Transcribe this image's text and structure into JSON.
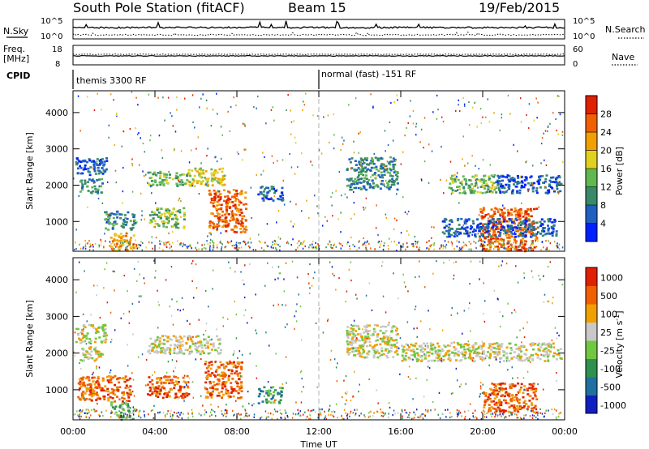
{
  "header": {
    "station": "South Pole Station (fitACF)",
    "beam": "Beam 15",
    "date": "19/Feb/2015"
  },
  "strip_panels": {
    "nsky_label": "N.Sky",
    "nsky_ticks": [
      "10^5",
      "10^0"
    ],
    "nsearch_label": "N.Search",
    "nsearch_ticks": [
      "10^5",
      "10^0"
    ],
    "freq_label_line1": "Freq.",
    "freq_label_line2": "[MHz]",
    "freq_ticks": [
      "18",
      "8"
    ],
    "nave_label": "Nave",
    "nave_ticks": [
      "60",
      "0"
    ],
    "cpid_label": "CPID",
    "cpid_modes": [
      {
        "name": "themis 3300 RF",
        "start_ut": 0
      },
      {
        "name": "normal (fast) -151 RF",
        "start_ut": 12
      }
    ]
  },
  "chart_data": [
    {
      "type": "heatmap",
      "title": "",
      "xlabel": "",
      "ylabel": "Slant Range [km]",
      "xlim": [
        0,
        24
      ],
      "ylim": [
        180,
        4600
      ],
      "yticks": [
        "1000",
        "2000",
        "3000",
        "4000"
      ],
      "colorbar_label": "Power [dB]",
      "colorbar_ticks": [
        "28",
        "24",
        "20",
        "16",
        "12",
        "8",
        "4"
      ],
      "colors": [
        "#0020ff",
        "#2060c0",
        "#3a8a6a",
        "#60b850",
        "#e0d020",
        "#f0a000",
        "#f06000",
        "#e02000"
      ],
      "regions": [
        {
          "x": [
            0.1,
            1.6
          ],
          "y": [
            2300,
            2800
          ],
          "level": 1
        },
        {
          "x": [
            0.3,
            1.4
          ],
          "y": [
            1800,
            2200
          ],
          "level": 2
        },
        {
          "x": [
            1.5,
            3.0
          ],
          "y": [
            800,
            1300
          ],
          "level": 2
        },
        {
          "x": [
            1.8,
            3.0
          ],
          "y": [
            200,
            700
          ],
          "level": 5
        },
        {
          "x": [
            3.6,
            5.6
          ],
          "y": [
            2000,
            2400
          ],
          "level": 3
        },
        {
          "x": [
            3.7,
            5.4
          ],
          "y": [
            850,
            1400
          ],
          "level": 3
        },
        {
          "x": [
            5.6,
            7.4
          ],
          "y": [
            2000,
            2500
          ],
          "level": 4
        },
        {
          "x": [
            6.6,
            8.4
          ],
          "y": [
            700,
            1900
          ],
          "level": 6
        },
        {
          "x": [
            9.0,
            10.2
          ],
          "y": [
            1600,
            2000
          ],
          "level": 1
        },
        {
          "x": [
            13.3,
            15.8
          ],
          "y": [
            1900,
            2800
          ],
          "level": 2
        },
        {
          "x": [
            18.3,
            20.6
          ],
          "y": [
            1800,
            2300
          ],
          "level": 3
        },
        {
          "x": [
            20.6,
            23.8
          ],
          "y": [
            1800,
            2300
          ],
          "level": 1
        },
        {
          "x": [
            19.8,
            22.6
          ],
          "y": [
            200,
            1400
          ],
          "level": 6
        },
        {
          "x": [
            18.0,
            23.6
          ],
          "y": [
            600,
            1100
          ],
          "level": 1
        }
      ]
    },
    {
      "type": "heatmap",
      "title": "",
      "xlabel": "Time UT",
      "ylabel": "Slant Range [km]",
      "xlim": [
        0,
        24
      ],
      "ylim": [
        180,
        4600
      ],
      "xticks": [
        "00:00",
        "04:00",
        "08:00",
        "12:00",
        "16:00",
        "20:00",
        "00:00"
      ],
      "yticks": [
        "1000",
        "2000",
        "3000",
        "4000"
      ],
      "colorbar_label": "Velocity [m s",
      "colorbar_label_sup": "-1",
      "colorbar_ticks": [
        "1000",
        "500",
        "100",
        "25",
        "-25",
        "-100",
        "-500",
        "-1000"
      ],
      "colors": [
        "#1020c0",
        "#2070a0",
        "#309050",
        "#70c840",
        "#c8c8c8",
        "#f0a000",
        "#f06000",
        "#e02000"
      ],
      "regions": [
        {
          "x": [
            0.1,
            1.6
          ],
          "y": [
            2300,
            2800
          ],
          "level": 4
        },
        {
          "x": [
            0.3,
            1.4
          ],
          "y": [
            1800,
            2200
          ],
          "level": 4
        },
        {
          "x": [
            0.2,
            2.8
          ],
          "y": [
            700,
            1400
          ],
          "level": 6
        },
        {
          "x": [
            1.8,
            3.0
          ],
          "y": [
            200,
            700
          ],
          "level": 3
        },
        {
          "x": [
            3.6,
            7.2
          ],
          "y": [
            2000,
            2500
          ],
          "level": 4
        },
        {
          "x": [
            3.6,
            5.6
          ],
          "y": [
            800,
            1400
          ],
          "level": 6
        },
        {
          "x": [
            6.4,
            8.2
          ],
          "y": [
            800,
            1800
          ],
          "level": 6
        },
        {
          "x": [
            9.0,
            10.2
          ],
          "y": [
            650,
            1100
          ],
          "level": 2
        },
        {
          "x": [
            13.3,
            15.8
          ],
          "y": [
            1900,
            2800
          ],
          "level": 4
        },
        {
          "x": [
            16.0,
            23.8
          ],
          "y": [
            1800,
            2300
          ],
          "level": 4
        },
        {
          "x": [
            20.0,
            22.6
          ],
          "y": [
            400,
            1200
          ],
          "level": 6
        }
      ]
    }
  ]
}
